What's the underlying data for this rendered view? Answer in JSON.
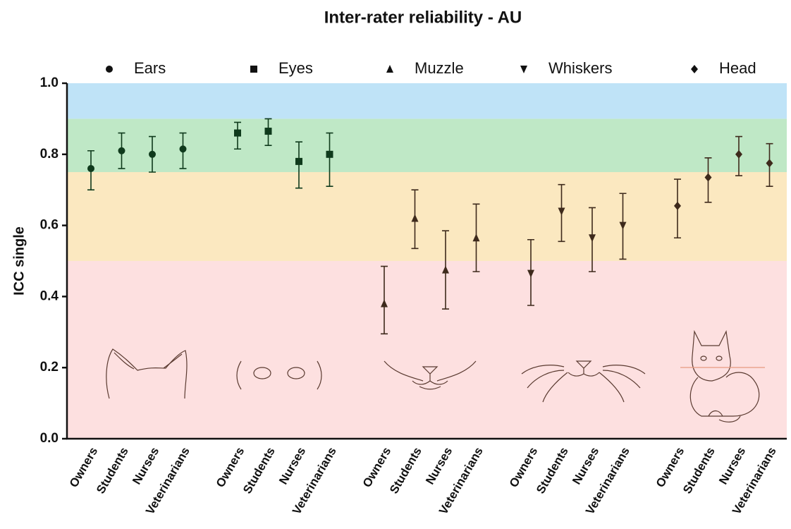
{
  "chart_data": {
    "type": "errorbar",
    "title": "Inter-rater reliability - AU",
    "y_label": "ICC single",
    "categories": [
      "Owners",
      "Students",
      "Nurses",
      "Veterinarians"
    ],
    "ylim": [
      0,
      1
    ],
    "yticks": [
      {
        "value": 0,
        "label": "0.0"
      },
      0.2,
      0.4,
      0.6,
      0.8,
      {
        "value": 1,
        "label": "1.0"
      }
    ],
    "bands": [
      {
        "from": 0,
        "to": 0.5,
        "color": "#fde0e0"
      },
      {
        "from": 0.5,
        "to": 0.75,
        "color": "#fbe8c0"
      },
      {
        "from": 0.75,
        "to": 0.9,
        "color": "#bfe8c6"
      },
      {
        "from": 0.9,
        "to": 1,
        "color": "#bfe3f7"
      }
    ],
    "series": [
      {
        "name": "Ears",
        "marker": "circle",
        "color": "#0f3a1c",
        "values": [
          0.76,
          0.81,
          0.8,
          0.815
        ],
        "lower": [
          0.7,
          0.76,
          0.75,
          0.76
        ],
        "upper": [
          0.81,
          0.86,
          0.85,
          0.86
        ]
      },
      {
        "name": "Eyes",
        "marker": "square",
        "color": "#0f3a1c",
        "values": [
          0.86,
          0.865,
          0.78,
          0.8
        ],
        "lower": [
          0.815,
          0.825,
          0.705,
          0.71
        ],
        "upper": [
          0.89,
          0.9,
          0.835,
          0.86
        ]
      },
      {
        "name": "Muzzle",
        "marker": "triangle-up",
        "color": "#3e2a1c",
        "values": [
          0.38,
          0.62,
          0.475,
          0.565
        ],
        "lower": [
          0.295,
          0.535,
          0.365,
          0.47
        ],
        "upper": [
          0.485,
          0.7,
          0.585,
          0.66
        ]
      },
      {
        "name": "Whiskers",
        "marker": "triangle-down",
        "color": "#3e2a1c",
        "values": [
          0.465,
          0.64,
          0.565,
          0.6
        ],
        "lower": [
          0.375,
          0.555,
          0.47,
          0.505
        ],
        "upper": [
          0.56,
          0.715,
          0.65,
          0.69
        ]
      },
      {
        "name": "Head",
        "marker": "diamond",
        "color": "#3e2a1c",
        "values": [
          0.655,
          0.735,
          0.8,
          0.775
        ],
        "lower": [
          0.565,
          0.665,
          0.74,
          0.71
        ],
        "upper": [
          0.73,
          0.79,
          0.85,
          0.83
        ]
      }
    ]
  }
}
